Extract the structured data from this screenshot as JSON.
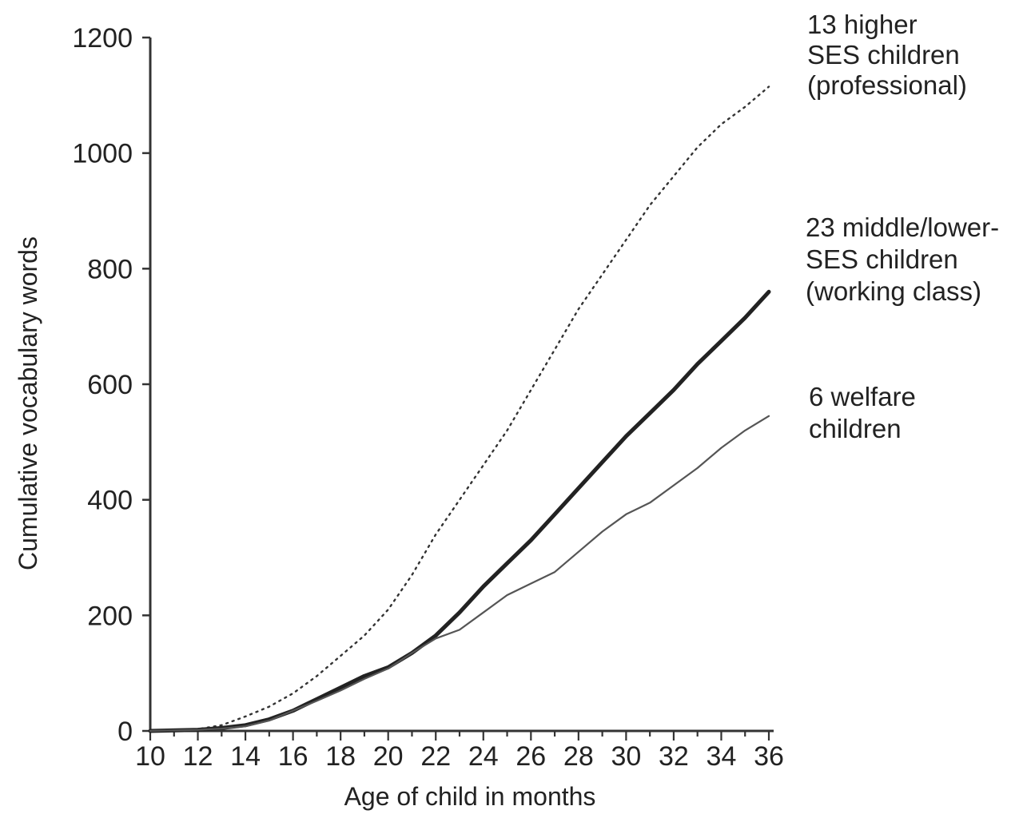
{
  "chart_data": {
    "type": "line",
    "xlabel": "Age of child in months",
    "ylabel": "Cumulative vocabulary words",
    "xlim": [
      10,
      36
    ],
    "ylim": [
      0,
      1200
    ],
    "x_ticks": [
      "10",
      "12",
      "14",
      "16",
      "18",
      "20",
      "22",
      "24",
      "26",
      "28",
      "30",
      "32",
      "34",
      "36"
    ],
    "y_ticks": [
      "0",
      "200",
      "400",
      "600",
      "800",
      "1000",
      "1200"
    ],
    "grid": false,
    "legend": "none",
    "series": [
      {
        "name": "13 higher SES children (professional)",
        "label_lines": [
          "13 higher",
          "SES children",
          "(professional)"
        ],
        "style": "dotted",
        "color": "#333333",
        "x": [
          10,
          12,
          13,
          14,
          15,
          16,
          17,
          18,
          19,
          20,
          21,
          22,
          23,
          24,
          25,
          26,
          27,
          28,
          29,
          30,
          31,
          32,
          33,
          34,
          35,
          36
        ],
        "y": [
          0,
          3,
          10,
          25,
          42,
          65,
          95,
          130,
          165,
          210,
          270,
          340,
          400,
          460,
          520,
          590,
          660,
          730,
          790,
          850,
          910,
          960,
          1010,
          1050,
          1080,
          1115
        ]
      },
      {
        "name": "23 middle/lower-SES children (working class)",
        "label_lines": [
          "23 middle/lower-",
          "SES children",
          "(working class)"
        ],
        "style": "solid-thick",
        "color": "#222222",
        "x": [
          10,
          12,
          13,
          14,
          15,
          16,
          17,
          18,
          19,
          20,
          21,
          22,
          23,
          24,
          25,
          26,
          27,
          28,
          29,
          30,
          31,
          32,
          33,
          34,
          35,
          36
        ],
        "y": [
          0,
          2,
          5,
          10,
          20,
          35,
          55,
          75,
          95,
          110,
          135,
          165,
          205,
          250,
          290,
          330,
          375,
          420,
          465,
          510,
          550,
          590,
          635,
          675,
          715,
          760
        ]
      },
      {
        "name": "6 welfare children",
        "label_lines": [
          "6 welfare",
          "children"
        ],
        "style": "solid-thin",
        "color": "#555555",
        "x": [
          10,
          12,
          13,
          14,
          15,
          16,
          17,
          18,
          19,
          20,
          21,
          22,
          23,
          24,
          25,
          26,
          27,
          28,
          29,
          30,
          31,
          32,
          33,
          34,
          35,
          36
        ],
        "y": [
          0,
          2,
          4,
          8,
          18,
          35,
          52,
          70,
          90,
          108,
          135,
          160,
          175,
          205,
          235,
          255,
          275,
          310,
          345,
          375,
          395,
          425,
          455,
          490,
          520,
          545
        ]
      }
    ]
  }
}
